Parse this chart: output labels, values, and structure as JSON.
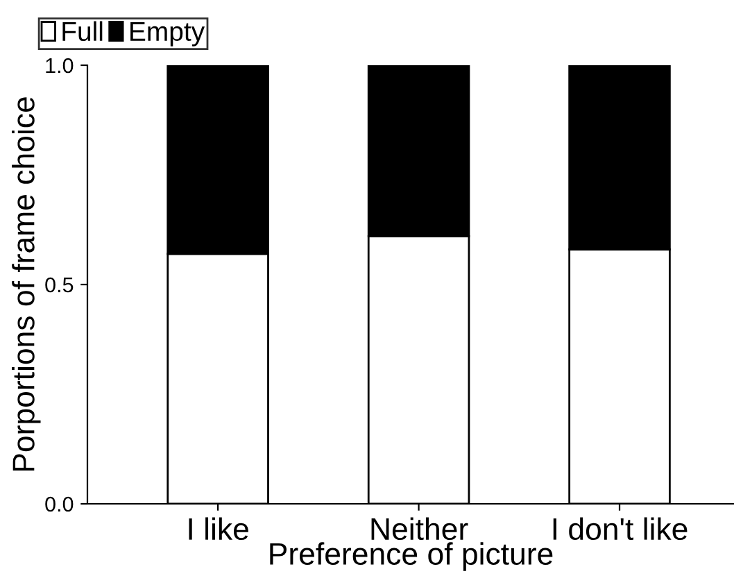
{
  "chart_data": {
    "type": "bar",
    "stacked": true,
    "xlabel": "Preference of picture",
    "ylabel": "Porportions of frame choice",
    "categories": [
      "I like",
      "Neither",
      "I don't like"
    ],
    "series": [
      {
        "name": "Full",
        "color": "#ffffff",
        "values": [
          0.57,
          0.61,
          0.58
        ]
      },
      {
        "name": "Empty",
        "color": "#000000",
        "values": [
          0.43,
          0.39,
          0.42
        ]
      }
    ],
    "ylim": [
      0,
      1
    ],
    "yticks": [
      {
        "value": 0,
        "label": "0.0"
      },
      {
        "value": 0.5,
        "label": "0.5"
      },
      {
        "value": 1,
        "label": "1.0"
      }
    ],
    "legend": "top left",
    "grid": false
  }
}
